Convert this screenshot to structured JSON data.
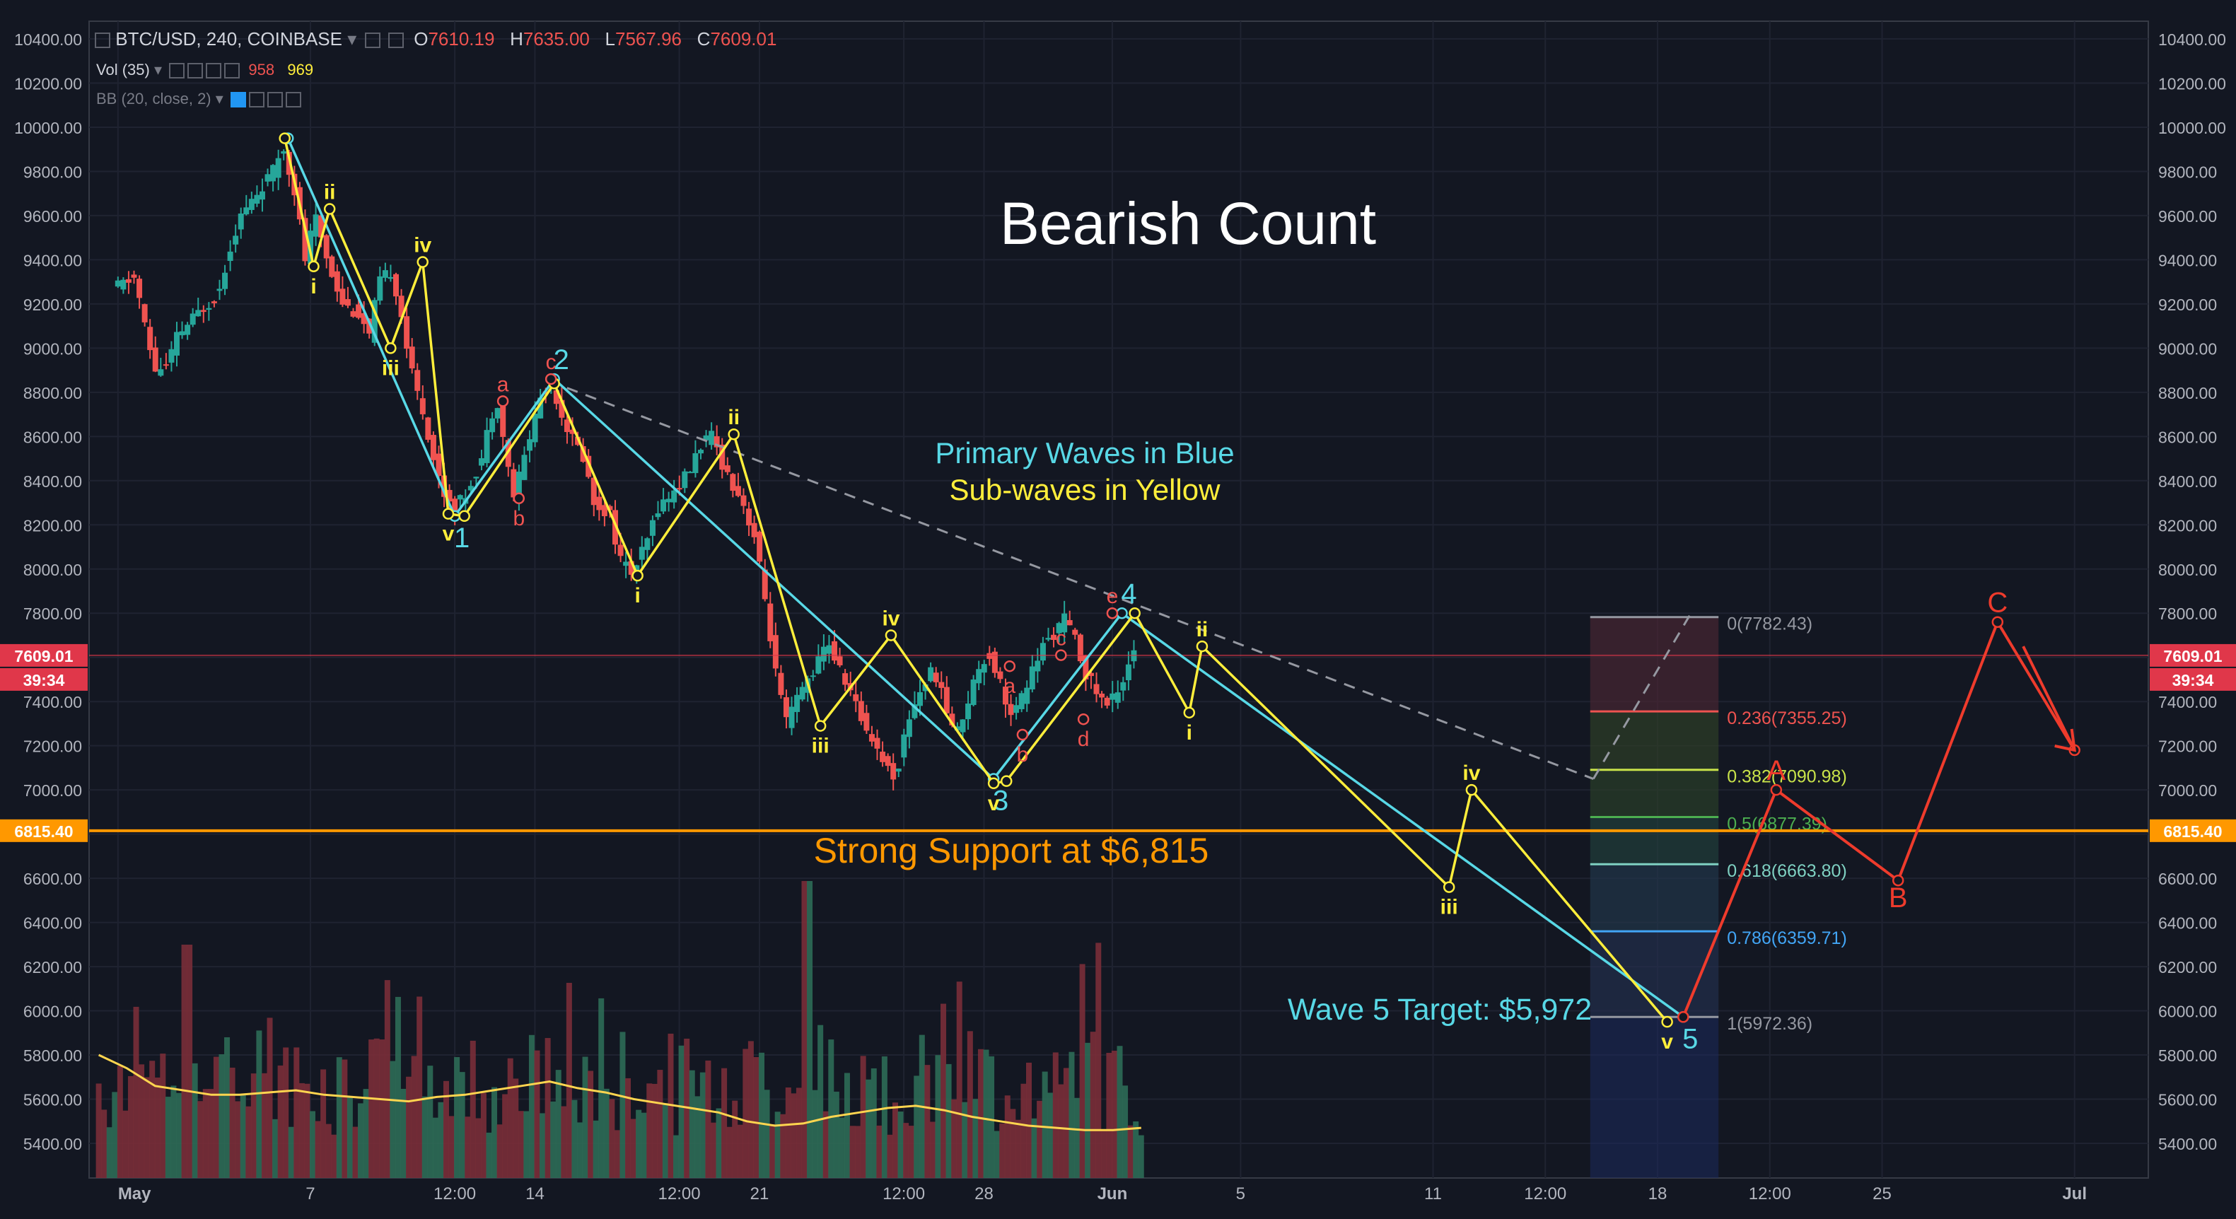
{
  "header": {
    "symbol": "BTC/USD, 240, COINBASE",
    "open_label": "O",
    "open": "7610.19",
    "high_label": "H",
    "high": "7635.00",
    "low_label": "L",
    "low": "7567.96",
    "close_label": "C",
    "close": "7609.01",
    "vol_label": "Vol (35)",
    "vol_a": "958",
    "vol_b": "969",
    "bb_label": "BB (20, close, 2)"
  },
  "price_badges": {
    "current": "7609.01",
    "countdown": "39:34",
    "support": "6815.40"
  },
  "annotations": {
    "title": "Bearish Count",
    "note1": "Primary Waves in Blue",
    "note2": "Sub-waves in Yellow",
    "support_text": "Strong Support at $6,815",
    "target_text": "Wave 5 Target: $5,972"
  },
  "fib_levels": [
    {
      "ratio": "0",
      "price": 7782.43,
      "label": "0(7782.43)",
      "color": "#9598a1"
    },
    {
      "ratio": "0.236",
      "price": 7355.25,
      "label": "0.236(7355.25)",
      "color": "#ef5350"
    },
    {
      "ratio": "0.382",
      "price": 7090.98,
      "label": "0.382(7090.98)",
      "color": "#c9e34a"
    },
    {
      "ratio": "0.5",
      "price": 6877.39,
      "label": "0.5(6877.39)",
      "color": "#4caf50"
    },
    {
      "ratio": "0.618",
      "price": 6663.8,
      "label": "0.618(6663.80)",
      "color": "#7fd1c2"
    },
    {
      "ratio": "0.786",
      "price": 6359.71,
      "label": "0.786(6359.71)",
      "color": "#42a5f5"
    },
    {
      "ratio": "1",
      "price": 5972.36,
      "label": "1(5972.36)",
      "color": "#9598a1"
    }
  ],
  "chart_data": {
    "type": "candlestick",
    "title": "Bearish Count",
    "xlabel": "",
    "ylabel": "",
    "ylim": [
      5300,
      10500
    ],
    "y_ticks": [
      10400,
      10200,
      10000,
      9800,
      9600,
      9400,
      9200,
      9000,
      8800,
      8600,
      8400,
      8200,
      8000,
      7800,
      7600,
      7400,
      7200,
      7000,
      6800,
      6600,
      6400,
      6200,
      6000,
      5800,
      5600,
      5400
    ],
    "x_ticks": [
      {
        "label": "May",
        "day": 0
      },
      {
        "label": "7",
        "day": 6
      },
      {
        "label": "12:00",
        "day": 10.5
      },
      {
        "label": "14",
        "day": 13
      },
      {
        "label": "12:00",
        "day": 17.5
      },
      {
        "label": "21",
        "day": 20
      },
      {
        "label": "12:00",
        "day": 24.5
      },
      {
        "label": "28",
        "day": 27
      },
      {
        "label": "Jun",
        "day": 31
      },
      {
        "label": "5",
        "day": 35
      },
      {
        "label": "11",
        "day": 41
      },
      {
        "label": "12:00",
        "day": 44.5
      },
      {
        "label": "18",
        "day": 48
      },
      {
        "label": "12:00",
        "day": 51.5
      },
      {
        "label": "25",
        "day": 55
      },
      {
        "label": "Jul",
        "day": 61
      }
    ],
    "x_domain_days": [
      -0.9,
      63.3
    ],
    "price_path": [
      [
        0,
        9270
      ],
      [
        0.7,
        9320
      ],
      [
        1,
        9100
      ],
      [
        1.3,
        8900
      ],
      [
        1.7,
        8920
      ],
      [
        2,
        9050
      ],
      [
        2.6,
        9150
      ],
      [
        3.3,
        9250
      ],
      [
        3.7,
        9480
      ],
      [
        4,
        9600
      ],
      [
        4.5,
        9700
      ],
      [
        5,
        9800
      ],
      [
        5.3,
        9920
      ],
      [
        5.7,
        9700
      ],
      [
        6,
        9400
      ],
      [
        6.3,
        9600
      ],
      [
        6.8,
        9350
      ],
      [
        7.2,
        9200
      ],
      [
        7.7,
        9150
      ],
      [
        8,
        9050
      ],
      [
        8.3,
        9300
      ],
      [
        8.7,
        9350
      ],
      [
        9,
        9150
      ],
      [
        9.3,
        8900
      ],
      [
        9.7,
        8700
      ],
      [
        10,
        8500
      ],
      [
        10.3,
        8350
      ],
      [
        10.7,
        8280
      ],
      [
        11,
        8340
      ],
      [
        11.5,
        8500
      ],
      [
        11.8,
        8700
      ],
      [
        12,
        8760
      ],
      [
        12.3,
        8480
      ],
      [
        12.5,
        8330
      ],
      [
        13,
        8600
      ],
      [
        13.3,
        8770
      ],
      [
        13.7,
        8840
      ],
      [
        14,
        8700
      ],
      [
        14.3,
        8600
      ],
      [
        14.7,
        8500
      ],
      [
        15,
        8300
      ],
      [
        15.5,
        8250
      ],
      [
        15.8,
        8050
      ],
      [
        16.2,
        7980
      ],
      [
        16.6,
        8100
      ],
      [
        17,
        8280
      ],
      [
        17.5,
        8350
      ],
      [
        18,
        8450
      ],
      [
        18.3,
        8560
      ],
      [
        18.7,
        8600
      ],
      [
        19,
        8480
      ],
      [
        19.3,
        8390
      ],
      [
        19.6,
        8320
      ],
      [
        20,
        8150
      ],
      [
        20.3,
        7900
      ],
      [
        20.7,
        7500
      ],
      [
        21,
        7300
      ],
      [
        21.3,
        7400
      ],
      [
        21.7,
        7510
      ],
      [
        22,
        7580
      ],
      [
        22.3,
        7680
      ],
      [
        22.6,
        7560
      ],
      [
        23,
        7450
      ],
      [
        23.3,
        7330
      ],
      [
        23.7,
        7230
      ],
      [
        24,
        7140
      ],
      [
        24.4,
        7050
      ],
      [
        24.8,
        7320
      ],
      [
        25.2,
        7460
      ],
      [
        25.6,
        7550
      ],
      [
        26,
        7360
      ],
      [
        26.3,
        7250
      ],
      [
        26.7,
        7420
      ],
      [
        27,
        7560
      ],
      [
        27.3,
        7620
      ],
      [
        27.7,
        7480
      ],
      [
        28,
        7330
      ],
      [
        28.3,
        7400
      ],
      [
        28.7,
        7550
      ],
      [
        29,
        7650
      ],
      [
        29.3,
        7700
      ],
      [
        29.7,
        7780
      ],
      [
        30,
        7680
      ],
      [
        30.3,
        7540
      ],
      [
        30.7,
        7440
      ],
      [
        31,
        7380
      ],
      [
        31.5,
        7500
      ],
      [
        31.8,
        7640
      ]
    ],
    "volume_moving_average": [
      5800,
      5740,
      5660,
      5640,
      5620,
      5620,
      5630,
      5640,
      5620,
      5610,
      5600,
      5590,
      5610,
      5620,
      5640,
      5660,
      5680,
      5650,
      5630,
      5600,
      5580,
      5560,
      5540,
      5500,
      5480,
      5490,
      5520,
      5540,
      5560,
      5570,
      5550,
      5520,
      5500,
      5480,
      5470,
      5460,
      5460,
      5470
    ],
    "series": [
      {
        "name": "Primary Waves in Blue",
        "color": "#58d8e6",
        "points": [
          [
            5.3,
            9950
          ],
          [
            10.5,
            8240
          ],
          [
            13.6,
            8860
          ],
          [
            27.3,
            7050
          ],
          [
            31.3,
            7800
          ],
          [
            48.8,
            5972
          ]
        ],
        "labels": [
          "",
          "1",
          "2",
          "3",
          "4",
          "5"
        ]
      },
      {
        "name": "Sub-waves in Yellow",
        "color": "#ffee3b",
        "points": [
          [
            5.2,
            9950
          ],
          [
            6.1,
            9370
          ],
          [
            6.6,
            9630
          ],
          [
            8.5,
            9000
          ],
          [
            9.5,
            9390
          ],
          [
            10.3,
            8250
          ],
          [
            10.8,
            8240
          ],
          [
            13.6,
            8840
          ],
          [
            16.2,
            7970
          ],
          [
            19.2,
            8610
          ],
          [
            21.9,
            7290
          ],
          [
            24.1,
            7700
          ],
          [
            27.3,
            7030
          ],
          [
            27.7,
            7040
          ],
          [
            31.7,
            7800
          ],
          [
            33.4,
            7350
          ],
          [
            33.8,
            7650
          ],
          [
            41.5,
            6560
          ],
          [
            42.2,
            7000
          ],
          [
            48.3,
            5950
          ]
        ],
        "labels": [
          "",
          "i",
          "ii",
          "iii",
          "iv",
          "v",
          "",
          "",
          "i",
          "ii",
          "iii",
          "iv",
          "v",
          "",
          "",
          "i",
          "ii",
          "iii",
          "iv",
          "v"
        ]
      },
      {
        "name": "",
        "color": "#ef5350",
        "points": [
          [
            12,
            8760
          ],
          [
            12.5,
            8320
          ],
          [
            13.5,
            8860
          ],
          [
            27.8,
            7560
          ],
          [
            28.2,
            7250
          ],
          [
            29.4,
            7610
          ],
          [
            30.1,
            7320
          ],
          [
            31,
            7800
          ]
        ],
        "labels": [
          "a",
          "b",
          "c",
          "a",
          "b",
          "c",
          "d",
          "e"
        ]
      },
      {
        "name": "",
        "color": "#ef3b2c",
        "points": [
          [
            48.8,
            5972
          ],
          [
            51.7,
            7000
          ],
          [
            55.5,
            6590
          ],
          [
            58.6,
            7760
          ],
          [
            61,
            7180
          ]
        ],
        "labels": [
          "",
          "A",
          "B",
          "C",
          ""
        ]
      }
    ],
    "trendline": {
      "from": [
        14,
        8820
      ],
      "to": [
        46,
        7050
      ],
      "extension_to": [
        49,
        7790
      ],
      "style": "dashed"
    },
    "horizontal_lines": [
      {
        "price": 6815.4,
        "color": "#ff9800",
        "label": "Strong Support at $6,815"
      },
      {
        "price": 7609.01,
        "color": "#e0374a",
        "label": ""
      }
    ]
  }
}
